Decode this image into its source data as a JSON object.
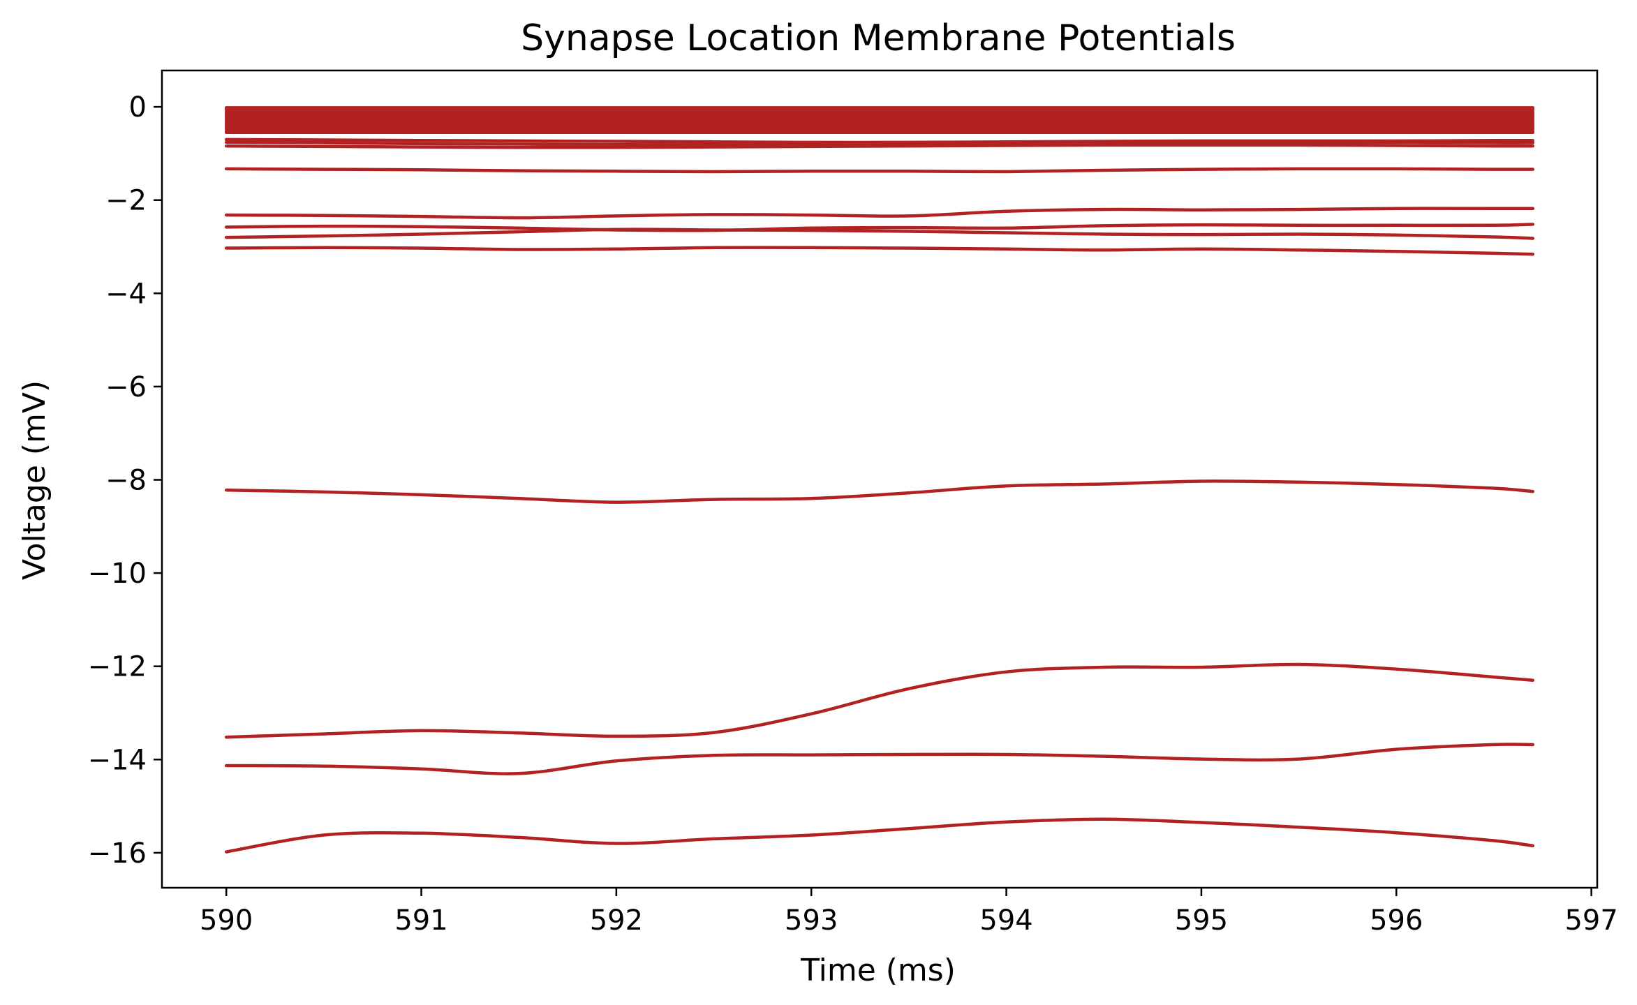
{
  "chart_data": {
    "type": "line",
    "title": "Synapse Location Membrane Potentials",
    "xlabel": "Time (ms)",
    "ylabel": "Voltage (mV)",
    "xlim": [
      589.67,
      597.03
    ],
    "ylim": [
      -16.75,
      0.78
    ],
    "xticks": [
      590,
      591,
      592,
      593,
      594,
      595,
      596,
      597
    ],
    "yticks": [
      0,
      -2,
      -4,
      -6,
      -8,
      -10,
      -12,
      -14,
      -16
    ],
    "xtick_labels": [
      "590",
      "591",
      "592",
      "593",
      "594",
      "595",
      "596",
      "597"
    ],
    "ytick_labels": [
      "0",
      "−2",
      "−4",
      "−6",
      "−8",
      "−10",
      "−12",
      "−14",
      "−16"
    ],
    "grid": false,
    "color": "#b22222",
    "x": [
      590.0,
      590.5,
      591.0,
      591.5,
      592.0,
      592.5,
      593.0,
      593.5,
      594.0,
      594.5,
      595.0,
      595.5,
      596.0,
      596.5,
      596.7
    ],
    "series": [
      {
        "values": [
          -0.02,
          -0.02,
          -0.02,
          -0.02,
          -0.02,
          -0.02,
          -0.02,
          -0.02,
          -0.02,
          -0.02,
          -0.02,
          -0.02,
          -0.02,
          -0.02,
          -0.02
        ]
      },
      {
        "values": [
          -0.05,
          -0.05,
          -0.05,
          -0.05,
          -0.05,
          -0.05,
          -0.05,
          -0.05,
          -0.05,
          -0.05,
          -0.05,
          -0.05,
          -0.05,
          -0.05,
          -0.05
        ]
      },
      {
        "values": [
          -0.08,
          -0.08,
          -0.08,
          -0.08,
          -0.08,
          -0.08,
          -0.08,
          -0.08,
          -0.08,
          -0.08,
          -0.08,
          -0.08,
          -0.08,
          -0.08,
          -0.08
        ]
      },
      {
        "values": [
          -0.12,
          -0.12,
          -0.12,
          -0.12,
          -0.12,
          -0.12,
          -0.12,
          -0.12,
          -0.12,
          -0.12,
          -0.12,
          -0.12,
          -0.12,
          -0.12,
          -0.12
        ]
      },
      {
        "values": [
          -0.15,
          -0.15,
          -0.15,
          -0.15,
          -0.15,
          -0.15,
          -0.15,
          -0.15,
          -0.15,
          -0.15,
          -0.15,
          -0.15,
          -0.15,
          -0.15,
          -0.15
        ]
      },
      {
        "values": [
          -0.18,
          -0.18,
          -0.18,
          -0.18,
          -0.18,
          -0.18,
          -0.18,
          -0.18,
          -0.18,
          -0.18,
          -0.18,
          -0.18,
          -0.18,
          -0.18,
          -0.18
        ]
      },
      {
        "values": [
          -0.22,
          -0.22,
          -0.22,
          -0.22,
          -0.22,
          -0.22,
          -0.22,
          -0.22,
          -0.22,
          -0.22,
          -0.22,
          -0.22,
          -0.22,
          -0.22,
          -0.22
        ]
      },
      {
        "values": [
          -0.25,
          -0.25,
          -0.25,
          -0.25,
          -0.25,
          -0.25,
          -0.25,
          -0.25,
          -0.25,
          -0.25,
          -0.25,
          -0.25,
          -0.25,
          -0.25,
          -0.25
        ]
      },
      {
        "values": [
          -0.28,
          -0.28,
          -0.28,
          -0.28,
          -0.28,
          -0.28,
          -0.28,
          -0.28,
          -0.28,
          -0.28,
          -0.28,
          -0.28,
          -0.28,
          -0.28,
          -0.28
        ]
      },
      {
        "values": [
          -0.32,
          -0.32,
          -0.32,
          -0.32,
          -0.32,
          -0.32,
          -0.32,
          -0.32,
          -0.32,
          -0.32,
          -0.32,
          -0.32,
          -0.32,
          -0.32,
          -0.32
        ]
      },
      {
        "values": [
          -0.35,
          -0.35,
          -0.35,
          -0.35,
          -0.35,
          -0.35,
          -0.35,
          -0.35,
          -0.35,
          -0.35,
          -0.35,
          -0.35,
          -0.35,
          -0.35,
          -0.35
        ]
      },
      {
        "values": [
          -0.38,
          -0.38,
          -0.38,
          -0.38,
          -0.38,
          -0.38,
          -0.38,
          -0.38,
          -0.38,
          -0.38,
          -0.38,
          -0.38,
          -0.38,
          -0.38,
          -0.38
        ]
      },
      {
        "values": [
          -0.42,
          -0.42,
          -0.42,
          -0.42,
          -0.42,
          -0.42,
          -0.42,
          -0.42,
          -0.42,
          -0.42,
          -0.42,
          -0.42,
          -0.42,
          -0.42,
          -0.42
        ]
      },
      {
        "values": [
          -0.45,
          -0.45,
          -0.45,
          -0.45,
          -0.45,
          -0.45,
          -0.45,
          -0.45,
          -0.45,
          -0.45,
          -0.45,
          -0.45,
          -0.45,
          -0.45,
          -0.45
        ]
      },
      {
        "values": [
          -0.48,
          -0.48,
          -0.48,
          -0.48,
          -0.48,
          -0.48,
          -0.48,
          -0.48,
          -0.48,
          -0.48,
          -0.48,
          -0.48,
          -0.48,
          -0.48,
          -0.48
        ]
      },
      {
        "values": [
          -0.52,
          -0.52,
          -0.52,
          -0.52,
          -0.52,
          -0.52,
          -0.52,
          -0.52,
          -0.52,
          -0.52,
          -0.52,
          -0.52,
          -0.52,
          -0.52,
          -0.52
        ]
      },
      {
        "values": [
          -0.55,
          -0.55,
          -0.55,
          -0.55,
          -0.55,
          -0.55,
          -0.55,
          -0.55,
          -0.55,
          -0.55,
          -0.55,
          -0.55,
          -0.55,
          -0.55,
          -0.55
        ]
      },
      {
        "values": [
          -0.7,
          -0.71,
          -0.72,
          -0.73,
          -0.74,
          -0.75,
          -0.76,
          -0.76,
          -0.75,
          -0.74,
          -0.73,
          -0.73,
          -0.73,
          -0.72,
          -0.72
        ]
      },
      {
        "values": [
          -0.76,
          -0.77,
          -0.79,
          -0.8,
          -0.81,
          -0.8,
          -0.79,
          -0.78,
          -0.78,
          -0.77,
          -0.76,
          -0.76,
          -0.76,
          -0.77,
          -0.77
        ]
      },
      {
        "values": [
          -0.84,
          -0.85,
          -0.86,
          -0.87,
          -0.87,
          -0.86,
          -0.85,
          -0.84,
          -0.83,
          -0.82,
          -0.82,
          -0.82,
          -0.83,
          -0.84,
          -0.84
        ]
      },
      {
        "values": [
          -1.33,
          -1.34,
          -1.35,
          -1.37,
          -1.38,
          -1.39,
          -1.38,
          -1.38,
          -1.39,
          -1.36,
          -1.34,
          -1.33,
          -1.33,
          -1.34,
          -1.34
        ]
      },
      {
        "values": [
          -2.32,
          -2.33,
          -2.35,
          -2.38,
          -2.34,
          -2.31,
          -2.32,
          -2.34,
          -2.24,
          -2.2,
          -2.21,
          -2.2,
          -2.18,
          -2.18,
          -2.18
        ]
      },
      {
        "values": [
          -2.58,
          -2.56,
          -2.57,
          -2.6,
          -2.64,
          -2.65,
          -2.6,
          -2.59,
          -2.6,
          -2.55,
          -2.53,
          -2.54,
          -2.54,
          -2.54,
          -2.52
        ]
      },
      {
        "values": [
          -2.8,
          -2.77,
          -2.73,
          -2.68,
          -2.63,
          -2.64,
          -2.65,
          -2.67,
          -2.7,
          -2.73,
          -2.74,
          -2.73,
          -2.75,
          -2.79,
          -2.82
        ]
      },
      {
        "values": [
          -3.03,
          -3.02,
          -3.03,
          -3.06,
          -3.05,
          -3.02,
          -3.02,
          -3.03,
          -3.05,
          -3.07,
          -3.05,
          -3.07,
          -3.1,
          -3.14,
          -3.16
        ]
      },
      {
        "values": [
          -8.22,
          -8.26,
          -8.32,
          -8.4,
          -8.48,
          -8.42,
          -8.4,
          -8.28,
          -8.13,
          -8.09,
          -8.03,
          -8.05,
          -8.1,
          -8.18,
          -8.25
        ]
      },
      {
        "values": [
          -13.52,
          -13.45,
          -13.38,
          -13.43,
          -13.5,
          -13.42,
          -13.02,
          -12.48,
          -12.12,
          -12.02,
          -12.02,
          -11.96,
          -12.06,
          -12.23,
          -12.3
        ]
      },
      {
        "values": [
          -14.13,
          -14.14,
          -14.2,
          -14.3,
          -14.03,
          -13.91,
          -13.9,
          -13.89,
          -13.89,
          -13.93,
          -13.99,
          -13.99,
          -13.78,
          -13.68,
          -13.68
        ]
      },
      {
        "values": [
          -15.98,
          -15.62,
          -15.58,
          -15.67,
          -15.8,
          -15.7,
          -15.62,
          -15.48,
          -15.34,
          -15.28,
          -15.35,
          -15.45,
          -15.57,
          -15.74,
          -15.85
        ]
      }
    ]
  }
}
